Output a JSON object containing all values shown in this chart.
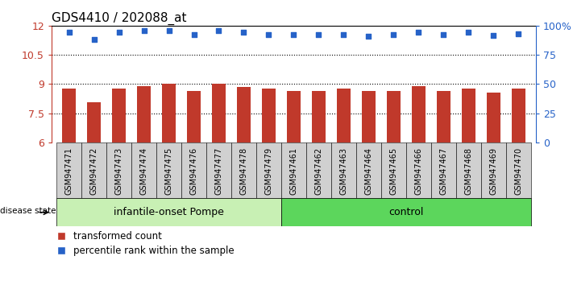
{
  "title": "GDS4410 / 202088_at",
  "samples": [
    "GSM947471",
    "GSM947472",
    "GSM947473",
    "GSM947474",
    "GSM947475",
    "GSM947476",
    "GSM947477",
    "GSM947478",
    "GSM947479",
    "GSM947461",
    "GSM947462",
    "GSM947463",
    "GSM947464",
    "GSM947465",
    "GSM947466",
    "GSM947467",
    "GSM947468",
    "GSM947469",
    "GSM947470"
  ],
  "bar_values": [
    8.75,
    8.05,
    8.75,
    8.9,
    9.0,
    8.65,
    9.0,
    8.85,
    8.75,
    8.65,
    8.65,
    8.75,
    8.65,
    8.65,
    8.9,
    8.65,
    8.75,
    8.55,
    8.75
  ],
  "dot_values": [
    11.65,
    11.3,
    11.65,
    11.75,
    11.75,
    11.55,
    11.75,
    11.65,
    11.55,
    11.55,
    11.55,
    11.55,
    11.45,
    11.55,
    11.65,
    11.55,
    11.65,
    11.5,
    11.6
  ],
  "group1_label": "infantile-onset Pompe",
  "group2_label": "control",
  "group1_count": 9,
  "group2_count": 10,
  "ylim_left": [
    6,
    12
  ],
  "ylim_right": [
    0,
    100
  ],
  "yticks_left": [
    6,
    7.5,
    9,
    10.5,
    12
  ],
  "yticks_right": [
    0,
    25,
    50,
    75,
    100
  ],
  "ytick_labels_left": [
    "6",
    "7.5",
    "9",
    "10.5",
    "12"
  ],
  "ytick_labels_right": [
    "0",
    "25",
    "50",
    "75",
    "100%"
  ],
  "bar_color": "#c0392b",
  "dot_color": "#2662c8",
  "group1_bg": "#c8f0b4",
  "group2_bg": "#5cd65c",
  "sample_bg": "#d0d0d0",
  "legend_bar_label": "transformed count",
  "legend_dot_label": "percentile rank within the sample",
  "hline_values": [
    7.5,
    9.0,
    10.5
  ],
  "bar_bottom": 6
}
